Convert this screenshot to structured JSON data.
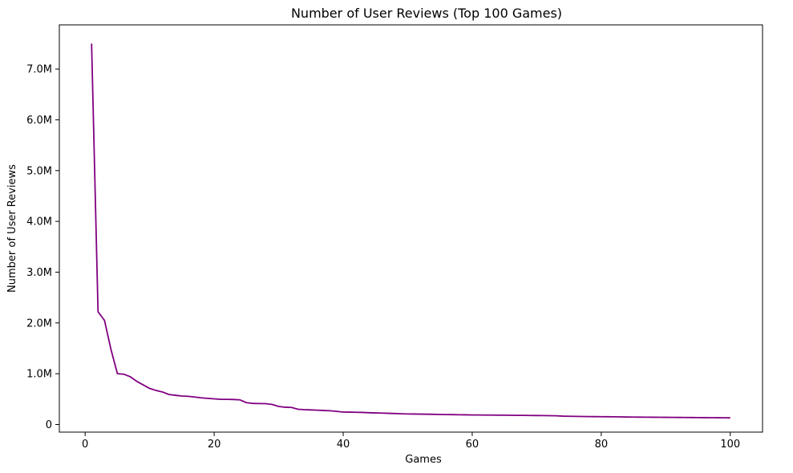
{
  "chart_data": {
    "type": "line",
    "title": "Number of User Reviews (Top 100 Games)",
    "xlabel": "Games",
    "ylabel": "Number of User Reviews",
    "xlim": [
      -4,
      105
    ],
    "ylim": [
      -150000,
      7870000
    ],
    "xticks": [
      0,
      20,
      40,
      60,
      80,
      100
    ],
    "xtick_labels": [
      "0",
      "20",
      "40",
      "60",
      "80",
      "100"
    ],
    "yticks": [
      0,
      1000000,
      2000000,
      3000000,
      4000000,
      5000000,
      6000000,
      7000000
    ],
    "ytick_labels": [
      "0",
      "1.0M",
      "2.0M",
      "3.0M",
      "4.0M",
      "5.0M",
      "6.0M",
      "7.0M"
    ],
    "grid": false,
    "line_color": "#800080",
    "series": [
      {
        "x": [
          1,
          2,
          3,
          4,
          5,
          6,
          7,
          8,
          9,
          10,
          11,
          12,
          13,
          14,
          15,
          16,
          17,
          18,
          19,
          20,
          21,
          22,
          23,
          24,
          25,
          26,
          27,
          28,
          29,
          30,
          31,
          32,
          33,
          34,
          35,
          36,
          37,
          38,
          39,
          40,
          41,
          42,
          43,
          44,
          45,
          46,
          47,
          48,
          49,
          50,
          51,
          52,
          53,
          54,
          55,
          56,
          57,
          58,
          59,
          60,
          61,
          62,
          63,
          64,
          65,
          66,
          67,
          68,
          69,
          70,
          71,
          72,
          73,
          74,
          75,
          76,
          77,
          78,
          79,
          80,
          81,
          82,
          83,
          84,
          85,
          86,
          87,
          88,
          89,
          90,
          91,
          92,
          93,
          94,
          95,
          96,
          97,
          98,
          99,
          100
        ],
        "values": [
          7500000,
          2220000,
          2050000,
          1480000,
          1000000,
          990000,
          940000,
          850000,
          780000,
          710000,
          670000,
          640000,
          590000,
          575000,
          560000,
          555000,
          540000,
          525000,
          515000,
          505000,
          495000,
          495000,
          492000,
          485000,
          430000,
          415000,
          413000,
          410000,
          395000,
          355000,
          340000,
          335000,
          300000,
          292000,
          287000,
          282000,
          275000,
          270000,
          258000,
          245000,
          244000,
          241000,
          238000,
          232000,
          228000,
          225000,
          220000,
          216000,
          211000,
          207000,
          206000,
          204000,
          202000,
          200000,
          197000,
          195000,
          194000,
          192000,
          190000,
          188000,
          187000,
          186000,
          185000,
          184000,
          183000,
          181000,
          180000,
          179000,
          178000,
          177000,
          176000,
          174000,
          172000,
          165000,
          162000,
          160000,
          158000,
          156000,
          155000,
          154000,
          153000,
          152000,
          150000,
          147000,
          146000,
          145000,
          144000,
          143000,
          142000,
          141000,
          140000,
          139000,
          138000,
          137000,
          136000,
          135000,
          134000,
          133000,
          132000,
          131000
        ]
      }
    ]
  }
}
